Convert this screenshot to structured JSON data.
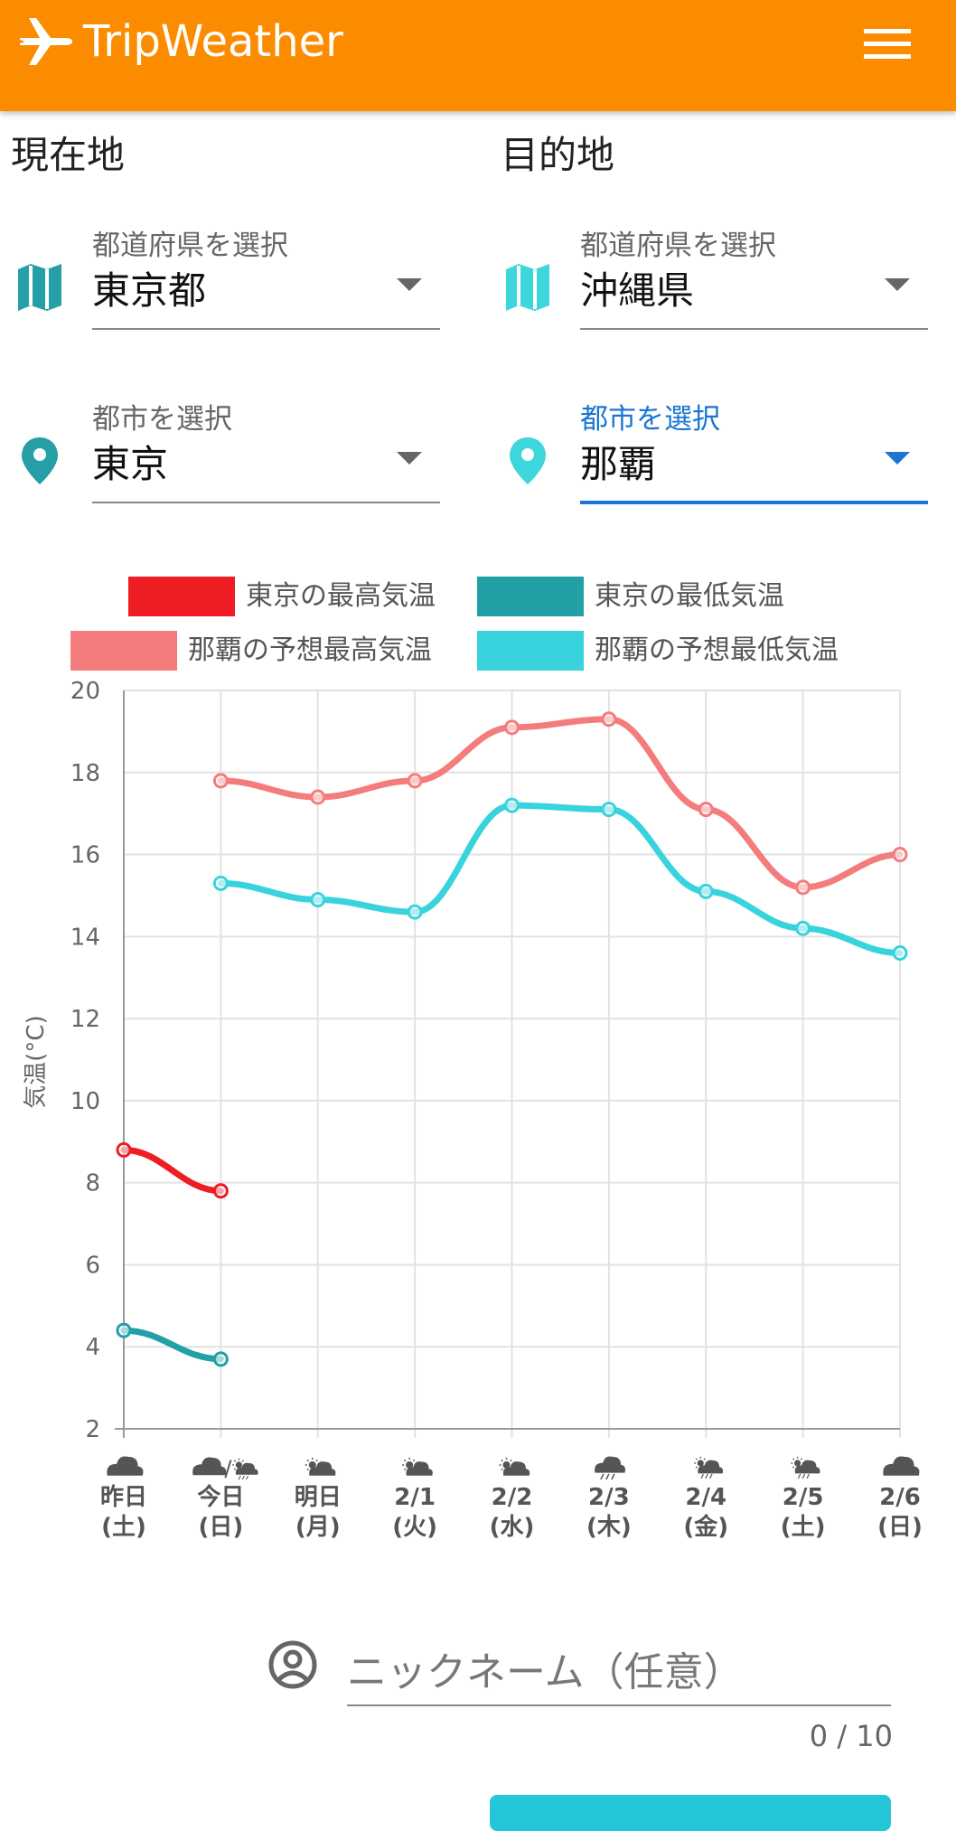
{
  "app": {
    "title": "TripWeather"
  },
  "current": {
    "heading": "現在地",
    "prefecture": {
      "label": "都道府県を選択",
      "value": "東京都"
    },
    "city": {
      "label": "都市を選択",
      "value": "東京"
    }
  },
  "destination": {
    "heading": "目的地",
    "prefecture": {
      "label": "都道府県を選択",
      "value": "沖縄県"
    },
    "city": {
      "label": "都市を選択",
      "value": "那覇"
    }
  },
  "colors": {
    "appbar": "#fb8c00",
    "current_icon": "#26a0a6",
    "dest_icon": "#3dd6dc",
    "active": "#1976d2"
  },
  "chart_data": {
    "type": "line",
    "ylabel": "気温(°C)",
    "ylim": [
      2,
      20
    ],
    "yticks": [
      2,
      4,
      6,
      8,
      10,
      12,
      14,
      16,
      18,
      20
    ],
    "grid": true,
    "legend_position": "top",
    "categories": [
      {
        "date": "昨日",
        "day": "(土)",
        "weather": "cloudy"
      },
      {
        "date": "今日",
        "day": "(日)",
        "weather": "cloudy/sun-rain"
      },
      {
        "date": "明日",
        "day": "(月)",
        "weather": "sun-cloud"
      },
      {
        "date": "2/1",
        "day": "(火)",
        "weather": "sun-cloud"
      },
      {
        "date": "2/2",
        "day": "(水)",
        "weather": "sun-cloud"
      },
      {
        "date": "2/3",
        "day": "(木)",
        "weather": "rain"
      },
      {
        "date": "2/4",
        "day": "(金)",
        "weather": "sun-cloud-rain"
      },
      {
        "date": "2/5",
        "day": "(土)",
        "weather": "sun-cloud-rain"
      },
      {
        "date": "2/6",
        "day": "(日)",
        "weather": "cloudy"
      }
    ],
    "series": [
      {
        "name": "東京の最高気温",
        "color": "#ee1c23",
        "values": [
          8.8,
          7.8,
          null,
          null,
          null,
          null,
          null,
          null,
          null
        ]
      },
      {
        "name": "東京の最低気温",
        "color": "#22a0a6",
        "values": [
          4.4,
          3.7,
          null,
          null,
          null,
          null,
          null,
          null,
          null
        ]
      },
      {
        "name": "那覇の予想最高気温",
        "color": "#f47c7c",
        "values": [
          null,
          17.8,
          17.4,
          17.8,
          19.1,
          19.3,
          17.1,
          15.2,
          16.0
        ]
      },
      {
        "name": "那覇の予想最低気温",
        "color": "#38d3dc",
        "values": [
          null,
          15.3,
          14.9,
          14.6,
          17.2,
          17.1,
          15.1,
          14.2,
          13.6
        ]
      }
    ]
  },
  "nickname": {
    "placeholder": "ニックネーム（任意）",
    "counter": "0 / 10"
  }
}
